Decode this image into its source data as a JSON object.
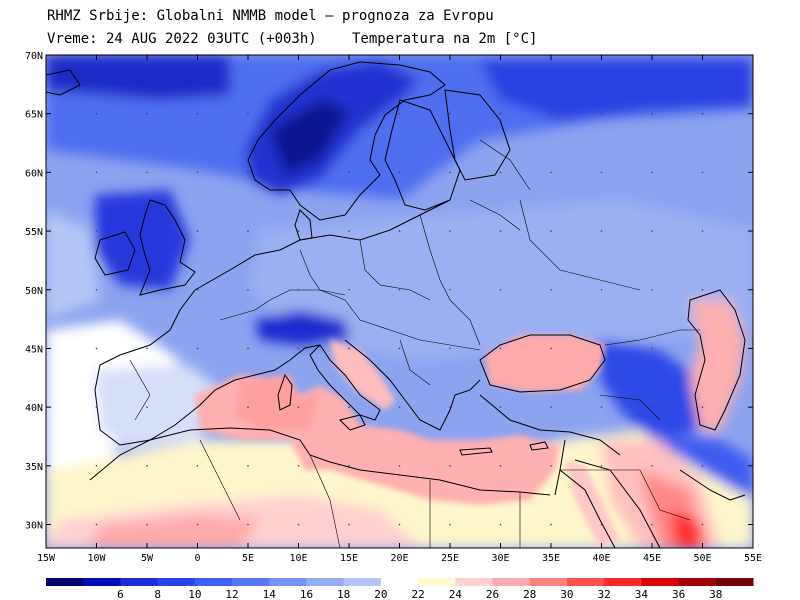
{
  "header": {
    "line1": "RHMZ Srbije: Globalni NMMB model — prognoza za Evropu",
    "line2_left": "Vreme: 24 AUG 2022 03UTC (+003h)",
    "line2_right": "Temperatura na 2m [°C]"
  },
  "map": {
    "lat_labels": [
      "70N",
      "65N",
      "60N",
      "55N",
      "50N",
      "45N",
      "40N",
      "35N",
      "30N"
    ],
    "lon_labels": [
      "15W",
      "10W",
      "5W",
      "0",
      "5E",
      "10E",
      "15E",
      "20E",
      "25E",
      "30E",
      "35E",
      "40E",
      "45E",
      "50E",
      "55E"
    ],
    "lat_values": [
      70,
      65,
      60,
      55,
      50,
      45,
      40,
      35,
      30
    ],
    "lon_values": [
      -15,
      -10,
      -5,
      0,
      5,
      10,
      15,
      20,
      25,
      30,
      35,
      40,
      45,
      50,
      55
    ]
  },
  "legend": {
    "labels": [
      "6",
      "8",
      "10",
      "12",
      "14",
      "16",
      "18",
      "20",
      "22",
      "24",
      "26",
      "28",
      "30",
      "32",
      "34",
      "36",
      "38"
    ],
    "colors": [
      "#00006e",
      "#000fb4",
      "#1e2ddc",
      "#2846f0",
      "#3c5ff5",
      "#5a78f5",
      "#7891f5",
      "#96aaf5",
      "#b4c3fa",
      "#ffffff",
      "#fffad2",
      "#ffd2d2",
      "#ffaaaa",
      "#ff8282",
      "#ff5050",
      "#ff2828",
      "#dc0000",
      "#a00000",
      "#6e0000"
    ]
  }
}
